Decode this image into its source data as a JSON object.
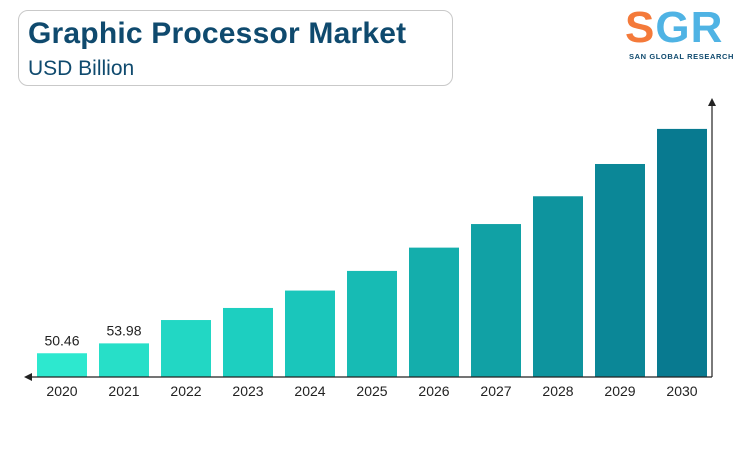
{
  "header": {
    "title": "Graphic Processor Market",
    "subtitle": "USD Billion"
  },
  "logo": {
    "letters": [
      "S",
      "G",
      "R"
    ],
    "tagline": "SAN GLOBAL RESEARCH",
    "colors": {
      "s": "#f47a3a",
      "g": "#4fb3e4",
      "r": "#4fb3e4"
    }
  },
  "chart_data": {
    "type": "bar",
    "title": "Graphic Processor Market",
    "subtitle": "USD Billion",
    "categories": [
      "2020",
      "2021",
      "2022",
      "2023",
      "2024",
      "2025",
      "2026",
      "2027",
      "2028",
      "2029",
      "2030"
    ],
    "values": [
      50.46,
      53.98,
      62.3,
      66.6,
      72.8,
      79.8,
      88.1,
      96.5,
      106.4,
      117.9,
      130.4
    ],
    "data_labels": [
      "50.46",
      "53.98",
      "",
      "",
      "",
      "",
      "",
      "",
      "",
      "",
      ""
    ],
    "ylim": [
      42,
      135
    ],
    "grid": false,
    "legend": "none",
    "colors": [
      "#2de8cf",
      "#27dfc8",
      "#22d7c4",
      "#1dcfc0",
      "#1ac6bb",
      "#17bbb4",
      "#14aeac",
      "#11a1a5",
      "#0e949e",
      "#0b8797",
      "#087a90"
    ]
  }
}
